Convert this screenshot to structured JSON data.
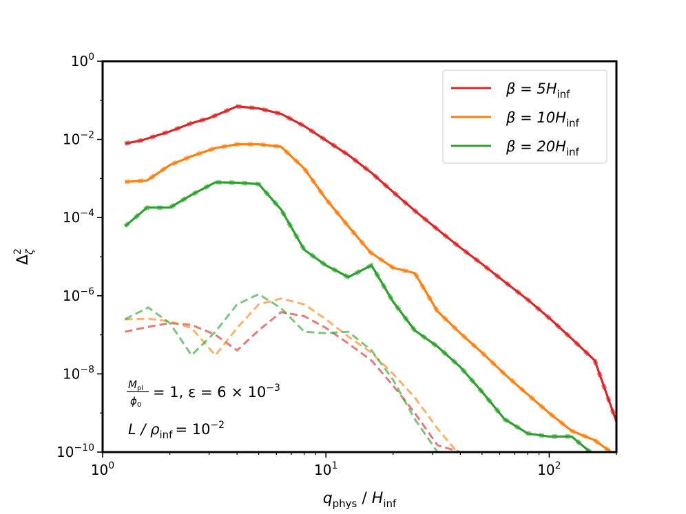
{
  "chart_data": {
    "type": "line",
    "xscale": "log",
    "yscale": "log",
    "xlim": [
      1.0,
      200
    ],
    "ylim": [
      1e-10,
      1.0
    ],
    "xlabel": {
      "main": "q",
      "sub": "phys",
      "sep": " / ",
      "main2": "H",
      "sub2": "inf"
    },
    "ylabel": {
      "main": "Δ",
      "sup": "2",
      "sub": "ζ"
    },
    "xticks": [
      {
        "value": 1,
        "base": "10",
        "exp": "0"
      },
      {
        "value": 10,
        "base": "10",
        "exp": "1"
      },
      {
        "value": 100,
        "base": "10",
        "exp": "2"
      }
    ],
    "yticks": [
      {
        "value": 1,
        "base": "10",
        "exp": "0"
      },
      {
        "value": 0.01,
        "base": "10",
        "exp": "−2"
      },
      {
        "value": 0.0001,
        "base": "10",
        "exp": "−4"
      },
      {
        "value": 1e-06,
        "base": "10",
        "exp": "−6"
      },
      {
        "value": 1e-08,
        "base": "10",
        "exp": "−8"
      },
      {
        "value": 1e-10,
        "base": "10",
        "exp": "−10"
      }
    ],
    "legend_position": "top-right",
    "grid": false,
    "annotations": {
      "line1": {
        "frac_num": "M",
        "frac_num_sub": "pl",
        "frac_den": "ϕ",
        "frac_den_sub": "0",
        "rest": "= 1, ε = 6 × 10",
        "rest_sup": "−3"
      },
      "line2": {
        "text": "L / ρ",
        "sub": "inf",
        "rest": "= 10",
        "rest_sup": "−2"
      }
    },
    "series": [
      {
        "name": "β = 5H_inf",
        "legend": {
          "prefix": "β = 5H",
          "sub": "inf"
        },
        "color": "#d62728",
        "solid": [
          [
            1.26,
            0.0078
          ],
          [
            1.5,
            0.0095
          ],
          [
            2.0,
            0.016
          ],
          [
            2.5,
            0.026
          ],
          [
            3.0,
            0.035
          ],
          [
            4.0,
            0.07
          ],
          [
            5.0,
            0.062
          ],
          [
            6.3,
            0.045
          ],
          [
            8.0,
            0.022
          ],
          [
            10.0,
            0.0095
          ],
          [
            12.6,
            0.004
          ],
          [
            16.0,
            0.0014
          ],
          [
            20.0,
            0.00045
          ],
          [
            25.0,
            0.00015
          ],
          [
            31.6,
            5e-05
          ],
          [
            40.0,
            1.7e-05
          ],
          [
            50.0,
            6.5e-06
          ],
          [
            63.0,
            2.3e-06
          ],
          [
            80.0,
            8e-07
          ],
          [
            100.0,
            2.7e-07
          ],
          [
            126.0,
            8e-08
          ],
          [
            160.0,
            2.2e-08
          ],
          [
            200.0,
            6e-10
          ]
        ],
        "dashed": [
          [
            1.26,
            1.2e-07
          ],
          [
            1.6,
            1.6e-07
          ],
          [
            2.0,
            2e-07
          ],
          [
            2.5,
            1.8e-07
          ],
          [
            3.2,
            1e-07
          ],
          [
            4.0,
            4e-08
          ],
          [
            5.0,
            1.3e-07
          ],
          [
            6.3,
            3.8e-07
          ],
          [
            8.0,
            3e-07
          ],
          [
            10.0,
            1.5e-07
          ],
          [
            12.6,
            6e-08
          ],
          [
            16.0,
            2.2e-08
          ],
          [
            20.0,
            5e-09
          ],
          [
            25.0,
            1e-09
          ],
          [
            31.6,
            1.5e-10
          ],
          [
            40.0,
            1e-10
          ]
        ]
      },
      {
        "name": "β = 10H_inf",
        "legend": {
          "prefix": "β = 10H",
          "sub": "inf"
        },
        "color": "#ff7f0e",
        "solid": [
          [
            1.26,
            0.00082
          ],
          [
            1.58,
            0.00089
          ],
          [
            2.0,
            0.0022
          ],
          [
            2.5,
            0.0037
          ],
          [
            3.2,
            0.006
          ],
          [
            4.0,
            0.0075
          ],
          [
            5.0,
            0.0075
          ],
          [
            6.3,
            0.0065
          ],
          [
            8.0,
            0.0018
          ],
          [
            10.0,
            0.0003
          ],
          [
            12.6,
            6e-05
          ],
          [
            15.8,
            1.3e-05
          ],
          [
            20.0,
            5.2e-06
          ],
          [
            25.0,
            3.8e-06
          ],
          [
            31.6,
            4e-07
          ],
          [
            40.0,
            1.1e-07
          ],
          [
            50.0,
            3.5e-08
          ],
          [
            63.0,
            1e-08
          ],
          [
            80.0,
            3e-09
          ],
          [
            100.0,
            1e-09
          ],
          [
            126.0,
            3.5e-10
          ],
          [
            160.0,
            2e-10
          ],
          [
            200.0,
            8e-11
          ]
        ],
        "dashed": [
          [
            1.26,
            2.5e-07
          ],
          [
            1.6,
            2.6e-07
          ],
          [
            2.0,
            2.2e-07
          ],
          [
            2.5,
            1.5e-07
          ],
          [
            3.2,
            3e-08
          ],
          [
            4.0,
            1.5e-07
          ],
          [
            5.0,
            6e-07
          ],
          [
            6.3,
            8.5e-07
          ],
          [
            8.0,
            6e-07
          ],
          [
            10.0,
            2.5e-07
          ],
          [
            12.6,
            9e-08
          ],
          [
            16.0,
            3.5e-08
          ],
          [
            20.0,
            1e-08
          ],
          [
            25.0,
            2.5e-09
          ],
          [
            31.6,
            4e-10
          ],
          [
            40.0,
            8e-11
          ]
        ]
      },
      {
        "name": "β = 20H_inf",
        "legend": {
          "prefix": "β = 20H",
          "sub": "inf"
        },
        "color": "#2ca02c",
        "solid": [
          [
            1.26,
            6e-05
          ],
          [
            1.58,
            0.00018
          ],
          [
            2.0,
            0.00018
          ],
          [
            2.5,
            0.00038
          ],
          [
            3.2,
            0.0008
          ],
          [
            4.0,
            0.00078
          ],
          [
            5.0,
            0.00072
          ],
          [
            6.3,
            0.00016
          ],
          [
            8.0,
            1.5e-05
          ],
          [
            10.0,
            6e-06
          ],
          [
            12.6,
            3e-06
          ],
          [
            16.0,
            6e-06
          ],
          [
            20.0,
            7e-07
          ],
          [
            25.0,
            1.3e-07
          ],
          [
            31.6,
            5e-08
          ],
          [
            40.0,
            1.5e-08
          ],
          [
            50.0,
            3.5e-09
          ],
          [
            63.0,
            7e-10
          ],
          [
            80.0,
            3e-10
          ],
          [
            100.0,
            2.5e-10
          ],
          [
            126.0,
            2.5e-10
          ],
          [
            160.0,
            8e-11
          ]
        ],
        "dashed": [
          [
            1.26,
            2.5e-07
          ],
          [
            1.6,
            5e-07
          ],
          [
            2.0,
            2e-07
          ],
          [
            2.5,
            3e-08
          ],
          [
            3.2,
            1.2e-07
          ],
          [
            4.0,
            6e-07
          ],
          [
            5.0,
            1.1e-06
          ],
          [
            6.3,
            4.8e-07
          ],
          [
            8.0,
            1.2e-07
          ],
          [
            10.0,
            1.1e-07
          ],
          [
            12.6,
            1.2e-07
          ],
          [
            16.0,
            4e-08
          ],
          [
            20.0,
            7e-09
          ],
          [
            25.0,
            7e-10
          ],
          [
            31.6,
            1e-10
          ]
        ]
      }
    ]
  }
}
